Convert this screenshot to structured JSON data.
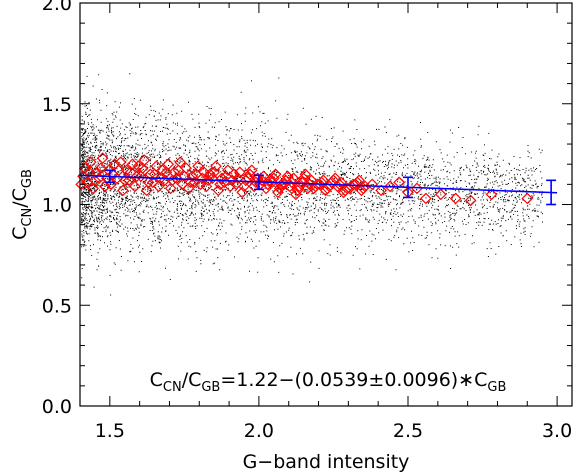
{
  "chart_data": {
    "type": "scatter",
    "xlabel": "G−band intensity",
    "ylabel": {
      "main": "C",
      "sub1": "CN",
      "slash": "/C",
      "sub2": "GB"
    },
    "xlim": [
      1.4,
      3.05
    ],
    "ylim": [
      0.0,
      2.0
    ],
    "x_ticks": [
      "1.5",
      "2.0",
      "2.5",
      "3.0"
    ],
    "x_tick_values": [
      1.5,
      2.0,
      2.5,
      3.0
    ],
    "y_ticks": [
      "0.0",
      "0.5",
      "1.0",
      "1.5",
      "2.0"
    ],
    "y_tick_values": [
      0.0,
      0.5,
      1.0,
      1.5,
      2.0
    ],
    "colors": {
      "scatter": "#000000",
      "diamond": "#ff0000",
      "fit": "#0000ff",
      "axes": "#000000"
    },
    "scatter_cloud": {
      "description_free": true,
      "x_min": 1.4,
      "x_max": 2.95,
      "center_y": 1.12,
      "count": 5200
    },
    "binned_means": {
      "marker": "diamond",
      "x": [
        1.41,
        1.43,
        1.45,
        1.47,
        1.49,
        1.51,
        1.53,
        1.55,
        1.57,
        1.59,
        1.61,
        1.63,
        1.65,
        1.67,
        1.69,
        1.71,
        1.73,
        1.75,
        1.77,
        1.79,
        1.81,
        1.83,
        1.85,
        1.87,
        1.89,
        1.91,
        1.93,
        1.95,
        1.97,
        1.99,
        2.01,
        2.03,
        2.05,
        2.07,
        2.09,
        2.11,
        2.13,
        2.15,
        2.17,
        2.19,
        2.21,
        2.23,
        2.25,
        2.27,
        2.29,
        2.31,
        2.33,
        2.35,
        2.38,
        2.41,
        2.44,
        2.47,
        2.5,
        2.53,
        2.56,
        2.61,
        2.66,
        2.71,
        2.78,
        2.9
      ],
      "y": [
        1.14,
        1.16,
        1.12,
        1.18,
        1.13,
        1.15,
        1.17,
        1.12,
        1.16,
        1.14,
        1.18,
        1.11,
        1.15,
        1.13,
        1.16,
        1.12,
        1.17,
        1.14,
        1.11,
        1.15,
        1.13,
        1.12,
        1.16,
        1.1,
        1.14,
        1.12,
        1.13,
        1.09,
        1.15,
        1.11,
        1.12,
        1.1,
        1.13,
        1.08,
        1.12,
        1.11,
        1.07,
        1.13,
        1.1,
        1.09,
        1.11,
        1.08,
        1.12,
        1.1,
        1.07,
        1.09,
        1.11,
        1.08,
        1.1,
        1.07,
        1.09,
        1.11,
        1.06,
        1.08,
        1.03,
        1.05,
        1.03,
        1.02,
        1.05,
        1.03
      ],
      "spread": [
        0.04,
        0.05,
        0.04,
        0.05,
        0.04,
        0.05,
        0.04,
        0.05,
        0.04,
        0.05,
        0.04,
        0.04,
        0.04,
        0.04,
        0.04,
        0.04,
        0.04,
        0.04,
        0.03,
        0.04,
        0.03,
        0.03,
        0.03,
        0.03,
        0.03,
        0.03,
        0.03,
        0.03,
        0.02,
        0.02,
        0.02,
        0.02,
        0.02,
        0.02,
        0.02,
        0.02,
        0.02,
        0.02,
        0.02,
        0.01,
        0.01,
        0.01,
        0.01,
        0.01,
        0.01,
        0.01,
        0.01,
        0.01,
        0,
        0,
        0,
        0,
        0,
        0,
        0,
        0,
        0,
        0,
        0,
        0
      ]
    },
    "fit_line": {
      "intercept": 1.22,
      "slope": -0.0539,
      "x_range": [
        1.4,
        3.0
      ]
    },
    "error_bars": [
      {
        "x": 1.5,
        "y": 1.14,
        "err": 0.03
      },
      {
        "x": 2.0,
        "y": 1.11,
        "err": 0.035
      },
      {
        "x": 2.5,
        "y": 1.085,
        "err": 0.05
      },
      {
        "x": 2.98,
        "y": 1.06,
        "err": 0.06
      }
    ],
    "equation": {
      "parts": [
        {
          "t": "C",
          "sub": false
        },
        {
          "t": "CN",
          "sub": true
        },
        {
          "t": "/C",
          "sub": false
        },
        {
          "t": "GB",
          "sub": true
        },
        {
          "t": "=1.22−(0.0539±0.0096)∗C",
          "sub": false
        },
        {
          "t": "GB",
          "sub": true
        }
      ]
    }
  }
}
